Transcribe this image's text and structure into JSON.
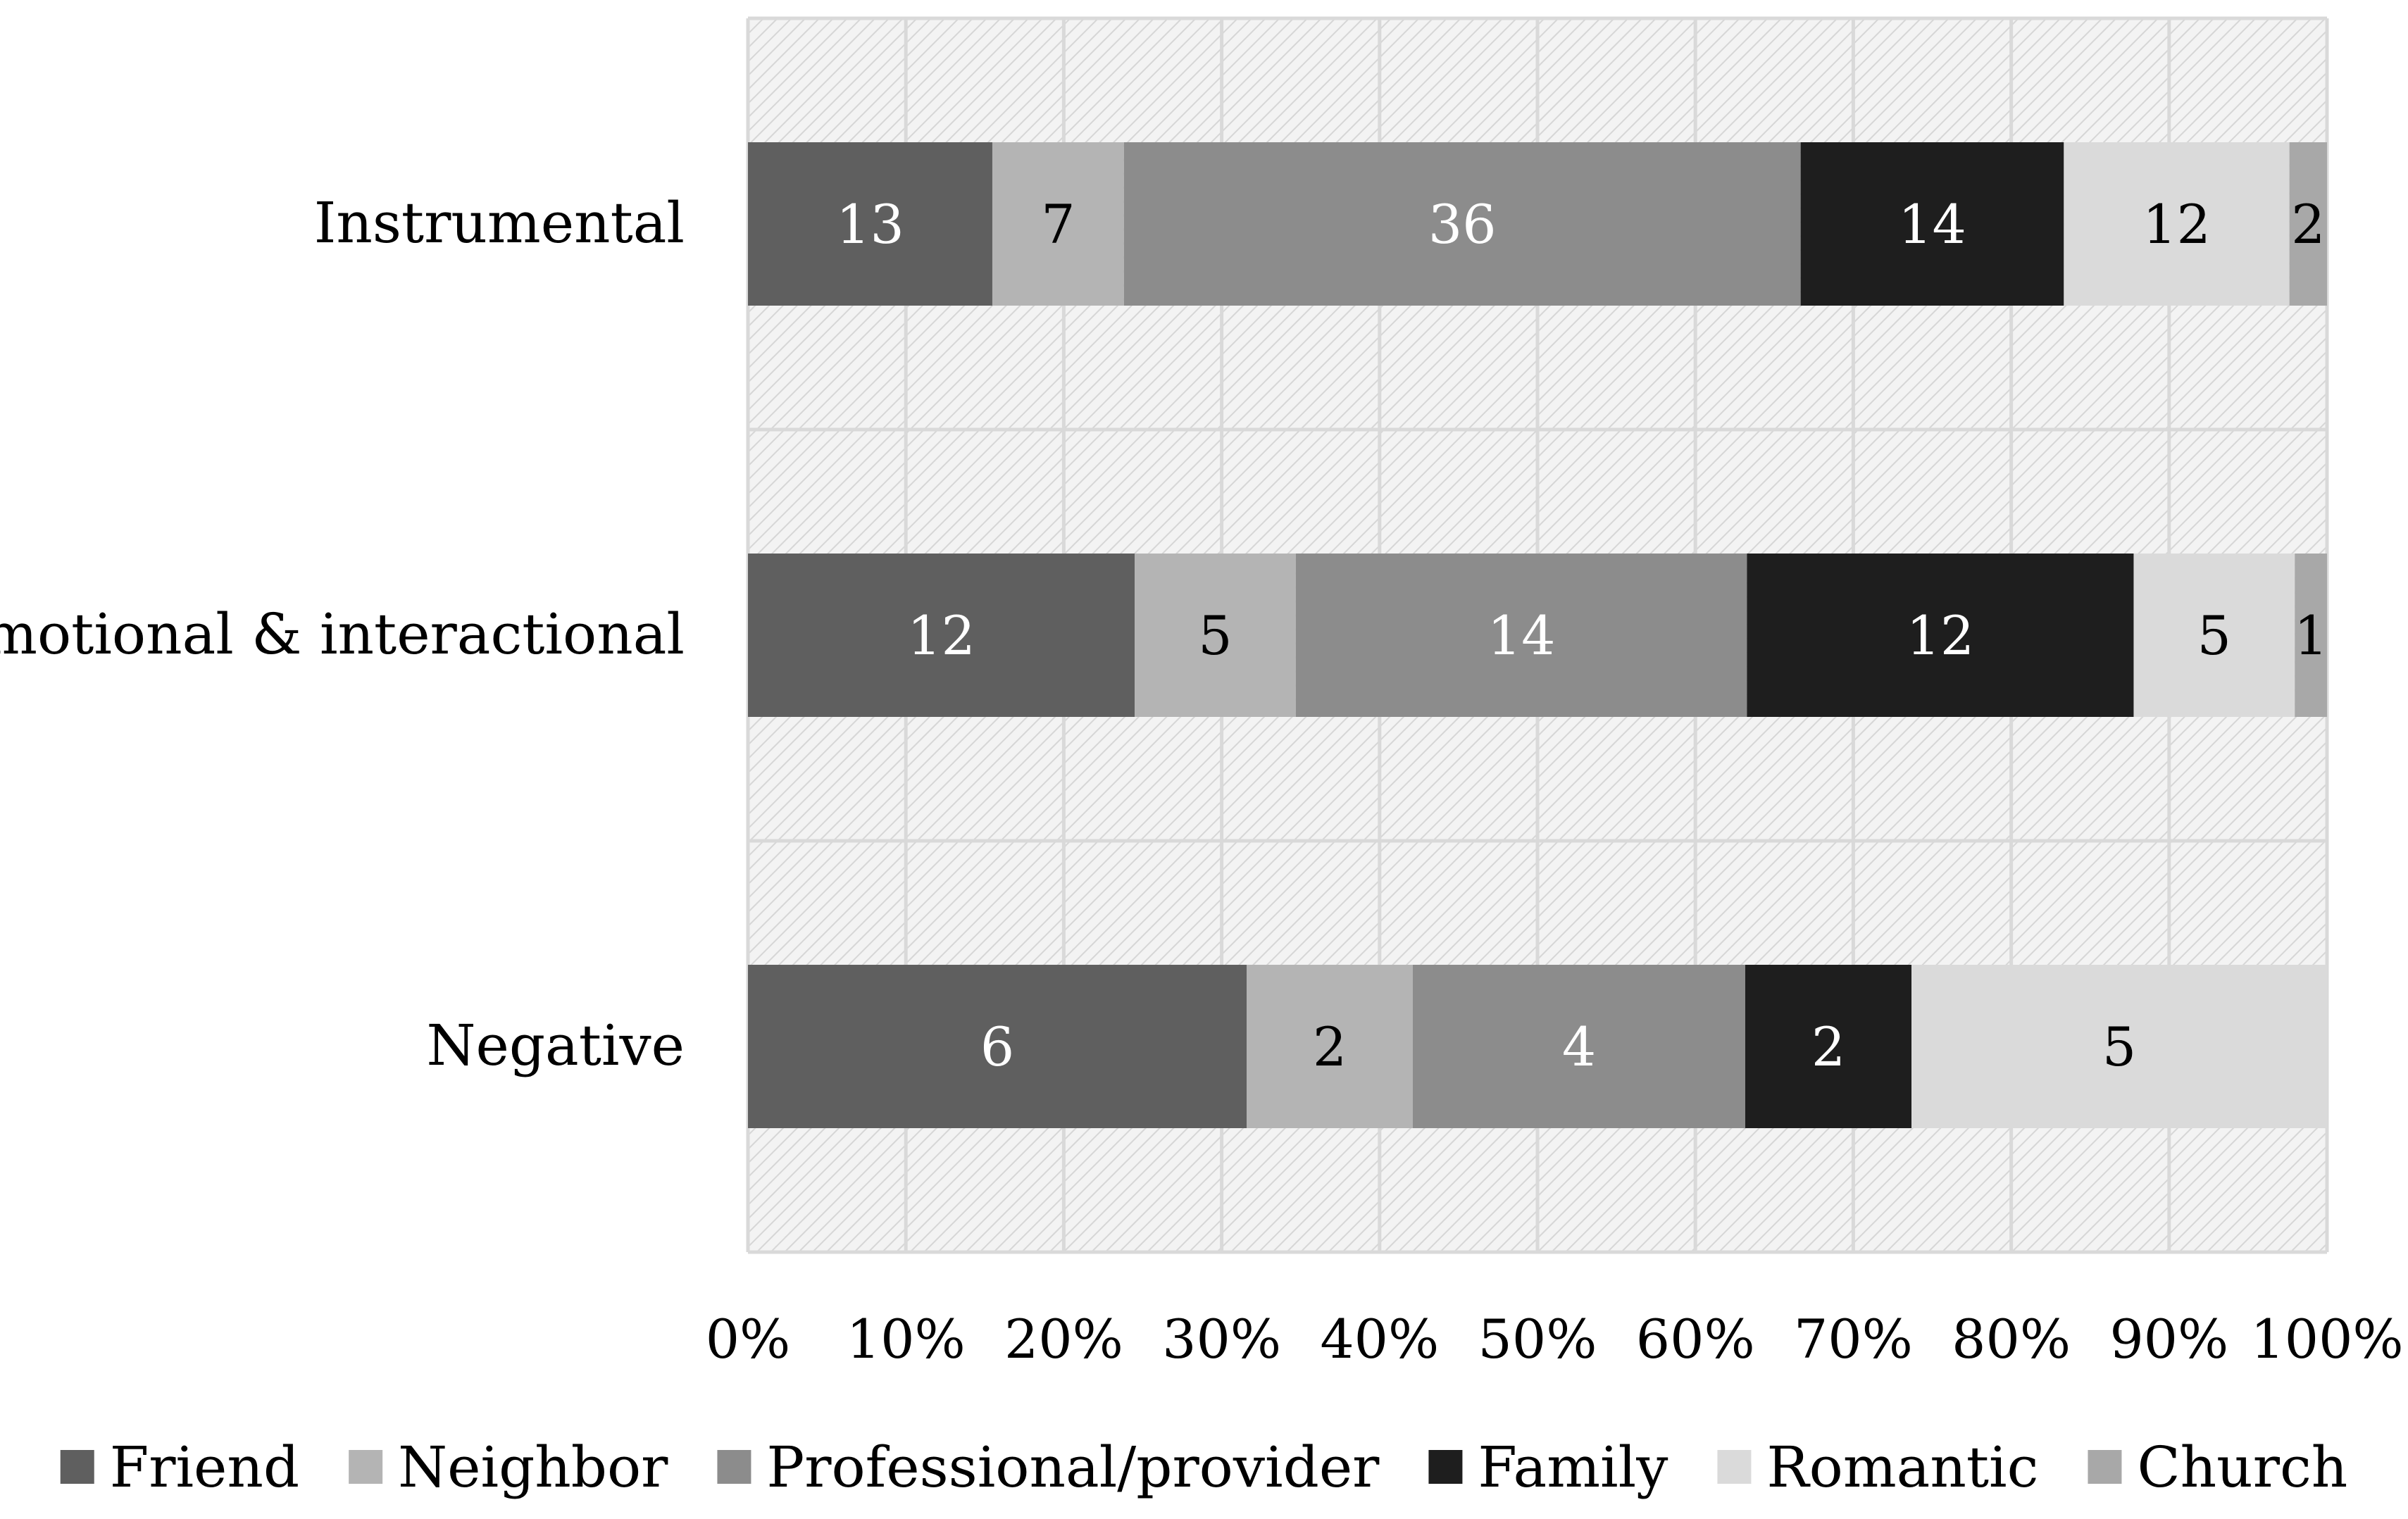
{
  "chart_data": {
    "type": "bar",
    "orientation": "horizontal",
    "stacked": "percent",
    "categories": [
      "Instrumental",
      "Emotional & interactional",
      "Negative"
    ],
    "series": [
      {
        "name": "Friend",
        "color": "#5f5f5f",
        "label_color": "#ffffff",
        "values": [
          13,
          12,
          6
        ]
      },
      {
        "name": "Neighbor",
        "color": "#b4b4b4",
        "label_color": "#000000",
        "values": [
          7,
          5,
          2
        ]
      },
      {
        "name": "Professional/provider",
        "color": "#8c8c8c",
        "label_color": "#ffffff",
        "values": [
          36,
          14,
          4
        ]
      },
      {
        "name": "Family",
        "color": "#1e1e1e",
        "label_color": "#ffffff",
        "values": [
          14,
          12,
          2
        ]
      },
      {
        "name": "Romantic",
        "color": "#dadada",
        "label_color": "#000000",
        "values": [
          12,
          5,
          5
        ]
      },
      {
        "name": "Church",
        "color": "#a8a8a8",
        "label_color": "#000000",
        "values": [
          2,
          1,
          0
        ]
      }
    ],
    "x_ticks": [
      "0%",
      "10%",
      "20%",
      "30%",
      "40%",
      "50%",
      "60%",
      "70%",
      "80%",
      "90%",
      "100%"
    ],
    "xlim": [
      0,
      100
    ],
    "grid": true,
    "legend": "bottom",
    "title": "",
    "xlabel": "",
    "ylabel": ""
  }
}
